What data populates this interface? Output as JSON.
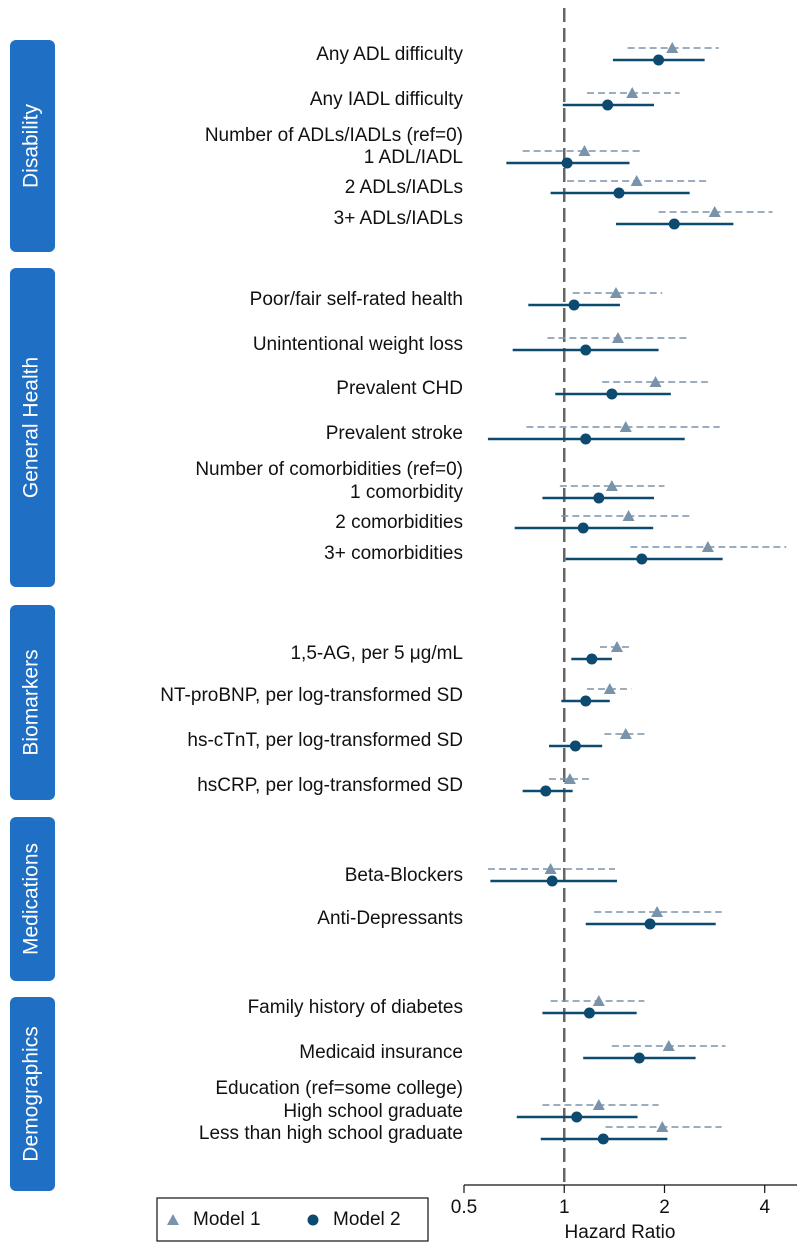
{
  "chart_data": {
    "type": "forest",
    "xlabel": "Hazard Ratio",
    "log_scale": true,
    "xlim": [
      0.5,
      5
    ],
    "xticks": [
      0.5,
      1,
      2,
      4
    ],
    "reference": 1,
    "series": [
      {
        "name": "Model 1",
        "color": "#7893aa",
        "marker": "triangle",
        "line": "dashed"
      },
      {
        "name": "Model 2",
        "color": "#0d4a70",
        "marker": "circle",
        "line": "solid"
      }
    ],
    "groups": [
      {
        "name": "Disability",
        "rows": [
          {
            "label": "Any ADL difficulty",
            "estimates": [
              {
                "hr": 2.11,
                "lo": 1.55,
                "hi": 2.91
              },
              {
                "hr": 1.92,
                "lo": 1.4,
                "hi": 2.64
              }
            ]
          },
          {
            "label": "Any IADL difficulty",
            "estimates": [
              {
                "hr": 1.6,
                "lo": 1.17,
                "hi": 2.22
              },
              {
                "hr": 1.35,
                "lo": 0.99,
                "hi": 1.86
              }
            ]
          },
          {
            "label": "Number of ADLs/IADLs (ref=0)"
          },
          {
            "label": "1 ADL/IADL",
            "estimates": [
              {
                "hr": 1.15,
                "lo": 0.75,
                "hi": 1.72
              },
              {
                "hr": 1.02,
                "lo": 0.67,
                "hi": 1.57
              }
            ]
          },
          {
            "label": "2 ADLs/IADLs",
            "estimates": [
              {
                "hr": 1.65,
                "lo": 1.02,
                "hi": 2.68
              },
              {
                "hr": 1.46,
                "lo": 0.91,
                "hi": 2.38
              }
            ]
          },
          {
            "label": "3+ ADLs/IADLs",
            "estimates": [
              {
                "hr": 2.83,
                "lo": 1.92,
                "hi": 4.22
              },
              {
                "hr": 2.14,
                "lo": 1.43,
                "hi": 3.22
              }
            ]
          }
        ]
      },
      {
        "name": "General Health",
        "rows": [
          {
            "label": "Poor/fair self-rated health",
            "estimates": [
              {
                "hr": 1.43,
                "lo": 1.06,
                "hi": 1.97
              },
              {
                "hr": 1.07,
                "lo": 0.78,
                "hi": 1.47
              }
            ]
          },
          {
            "label": "Unintentional weight loss",
            "estimates": [
              {
                "hr": 1.45,
                "lo": 0.89,
                "hi": 2.38
              },
              {
                "hr": 1.16,
                "lo": 0.7,
                "hi": 1.92
              }
            ]
          },
          {
            "label": "Prevalent CHD",
            "estimates": [
              {
                "hr": 1.88,
                "lo": 1.3,
                "hi": 2.7
              },
              {
                "hr": 1.39,
                "lo": 0.94,
                "hi": 2.09
              }
            ]
          },
          {
            "label": "Prevalent stroke",
            "estimates": [
              {
                "hr": 1.53,
                "lo": 0.77,
                "hi": 2.93
              },
              {
                "hr": 1.16,
                "lo": 0.59,
                "hi": 2.3
              }
            ]
          },
          {
            "label": "Number of comorbidities (ref=0)"
          },
          {
            "label": "1 comorbidity",
            "estimates": [
              {
                "hr": 1.39,
                "lo": 0.97,
                "hi": 2.0
              },
              {
                "hr": 1.27,
                "lo": 0.86,
                "hi": 1.86
              }
            ]
          },
          {
            "label": "2 comorbidities",
            "estimates": [
              {
                "hr": 1.56,
                "lo": 0.98,
                "hi": 2.43
              },
              {
                "hr": 1.14,
                "lo": 0.71,
                "hi": 1.85
              }
            ]
          },
          {
            "label": "3+ comorbidities",
            "estimates": [
              {
                "hr": 2.7,
                "lo": 1.58,
                "hi": 4.64
              },
              {
                "hr": 1.71,
                "lo": 1.01,
                "hi": 2.99
              }
            ]
          }
        ]
      },
      {
        "name": "Biomarkers",
        "rows": [
          {
            "label": "1,5-AG, per 5 μg/mL",
            "estimates": [
              {
                "hr": 1.44,
                "lo": 1.28,
                "hi": 1.6
              },
              {
                "hr": 1.21,
                "lo": 1.05,
                "hi": 1.39
              }
            ]
          },
          {
            "label": "NT-proBNP, per log-transformed SD",
            "estimates": [
              {
                "hr": 1.37,
                "lo": 1.17,
                "hi": 1.59
              },
              {
                "hr": 1.16,
                "lo": 0.98,
                "hi": 1.37
              }
            ]
          },
          {
            "label": "hs-cTnT, per log-transformed SD",
            "estimates": [
              {
                "hr": 1.53,
                "lo": 1.32,
                "hi": 1.78
              },
              {
                "hr": 1.08,
                "lo": 0.9,
                "hi": 1.3
              }
            ]
          },
          {
            "label": "hsCRP, per log-transformed SD",
            "estimates": [
              {
                "hr": 1.04,
                "lo": 0.9,
                "hi": 1.21
              },
              {
                "hr": 0.88,
                "lo": 0.75,
                "hi": 1.06
              }
            ]
          }
        ]
      },
      {
        "name": "Medications",
        "rows": [
          {
            "label": "Beta-Blockers",
            "estimates": [
              {
                "hr": 0.91,
                "lo": 0.59,
                "hi": 1.42
              },
              {
                "hr": 0.92,
                "lo": 0.6,
                "hi": 1.44
              }
            ]
          },
          {
            "label": "Anti-Depressants",
            "estimates": [
              {
                "hr": 1.9,
                "lo": 1.23,
                "hi": 2.97
              },
              {
                "hr": 1.81,
                "lo": 1.16,
                "hi": 2.85
              }
            ]
          }
        ]
      },
      {
        "name": "Demographics",
        "rows": [
          {
            "label": "Family history of diabetes",
            "estimates": [
              {
                "hr": 1.27,
                "lo": 0.91,
                "hi": 1.74
              },
              {
                "hr": 1.19,
                "lo": 0.86,
                "hi": 1.65
              }
            ]
          },
          {
            "label": "Medicaid insurance",
            "estimates": [
              {
                "hr": 2.06,
                "lo": 1.39,
                "hi": 3.05
              },
              {
                "hr": 1.68,
                "lo": 1.14,
                "hi": 2.48
              }
            ]
          },
          {
            "label": "Education (ref=some college)"
          },
          {
            "label": "High school graduate",
            "estimates": [
              {
                "hr": 1.27,
                "lo": 0.86,
                "hi": 1.92
              },
              {
                "hr": 1.09,
                "lo": 0.72,
                "hi": 1.66
              }
            ]
          },
          {
            "label": "Less than high school graduate",
            "estimates": [
              {
                "hr": 1.97,
                "lo": 1.33,
                "hi": 2.97
              },
              {
                "hr": 1.31,
                "lo": 0.85,
                "hi": 2.04
              }
            ]
          }
        ]
      }
    ]
  }
}
